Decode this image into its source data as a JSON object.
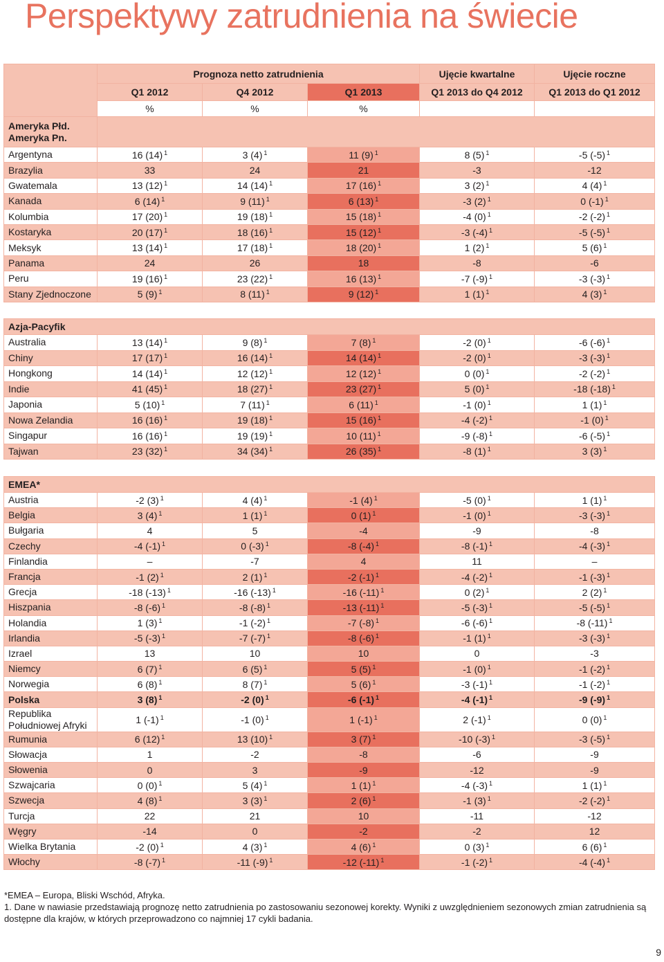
{
  "title": "Perspektywy zatrudnienia na świecie",
  "header": {
    "group_forecast": "Prognoza netto zatrudnienia",
    "group_quarterly": "Ujęcie kwartalne",
    "group_annual": "Ujęcie roczne",
    "columns": [
      "Q1 2012",
      "Q4 2012",
      "Q1 2013",
      "Q1 2013 do Q4 2012",
      "Q1 2013 do Q1 2012"
    ],
    "units": [
      "%",
      "%",
      "%"
    ]
  },
  "sections": [
    {
      "title": "Ameryka Płd.\nAmeryka Pn.",
      "rows": [
        {
          "label": "Argentyna",
          "values": [
            "16 (14)",
            "3 (4)",
            "11 (9)",
            "8 (5)",
            "-5 (-5)"
          ],
          "note": "1"
        },
        {
          "label": "Brazylia",
          "values": [
            "33",
            "24",
            "21",
            "-3",
            "-12"
          ]
        },
        {
          "label": "Gwatemala",
          "values": [
            "13 (12)",
            "14 (14)",
            "17 (16)",
            "3 (2)",
            "4 (4)"
          ],
          "note": "1"
        },
        {
          "label": "Kanada",
          "values": [
            "6 (14)",
            "9 (11)",
            "6 (13)",
            "-3 (2)",
            "0 (-1)"
          ],
          "note": "1"
        },
        {
          "label": "Kolumbia",
          "values": [
            "17 (20)",
            "19 (18)",
            "15 (18)",
            "-4 (0)",
            "-2 (-2)"
          ],
          "note": "1"
        },
        {
          "label": "Kostaryka",
          "values": [
            "20 (17)",
            "18 (16)",
            "15 (12)",
            "-3 (-4)",
            "-5 (-5)"
          ],
          "note": "1"
        },
        {
          "label": "Meksyk",
          "values": [
            "13 (14)",
            "17 (18)",
            "18 (20)",
            "1 (2)",
            "5 (6)"
          ],
          "note": "1"
        },
        {
          "label": "Panama",
          "values": [
            "24",
            "26",
            "18",
            "-8",
            "-6"
          ]
        },
        {
          "label": "Peru",
          "values": [
            "19 (16)",
            "23 (22)",
            "16 (13)",
            "-7 (-9)",
            "-3 (-3)"
          ],
          "note": "1"
        },
        {
          "label": "Stany Zjednoczone",
          "values": [
            "5 (9)",
            "8 (11)",
            "9 (12)",
            "1 (1)",
            "4 (3)"
          ],
          "note": "1"
        }
      ]
    },
    {
      "title": "Azja-Pacyfik",
      "rows": [
        {
          "label": "Australia",
          "values": [
            "13 (14)",
            "9 (8)",
            "7 (8)",
            "-2 (0)",
            "-6 (-6)"
          ],
          "note": "1"
        },
        {
          "label": "Chiny",
          "values": [
            "17 (17)",
            "16 (14)",
            "14 (14)",
            "-2 (0)",
            "-3 (-3)"
          ],
          "note": "1"
        },
        {
          "label": "Hongkong",
          "values": [
            "14 (14)",
            "12 (12)",
            "12 (12)",
            "0 (0)",
            "-2 (-2)"
          ],
          "note": "1"
        },
        {
          "label": "Indie",
          "values": [
            "41 (45)",
            "18 (27)",
            "23 (27)",
            "5 (0)",
            "-18 (-18)"
          ],
          "note": "1"
        },
        {
          "label": "Japonia",
          "values": [
            "5 (10)",
            "7 (11)",
            "6 (11)",
            "-1 (0)",
            "1 (1)"
          ],
          "note": "1"
        },
        {
          "label": "Nowa Zelandia",
          "values": [
            "16 (16)",
            "19 (18)",
            "15 (16)",
            "-4 (-2)",
            "-1 (0)"
          ],
          "note": "1"
        },
        {
          "label": "Singapur",
          "values": [
            "16 (16)",
            "19 (19)",
            "10 (11)",
            "-9 (-8)",
            "-6 (-5)"
          ],
          "note": "1"
        },
        {
          "label": "Tajwan",
          "values": [
            "23 (32)",
            "34 (34)",
            "26 (35)",
            "-8 (1)",
            "3 (3)"
          ],
          "note": "1"
        }
      ]
    },
    {
      "title": "EMEA*",
      "rows": [
        {
          "label": "Austria",
          "values": [
            "-2 (3)",
            "4 (4)",
            "-1 (4)",
            "-5 (0)",
            "1 (1)"
          ],
          "note": "1"
        },
        {
          "label": "Belgia",
          "values": [
            "3 (4)",
            "1 (1)",
            "0 (1)",
            "-1 (0)",
            "-3 (-3)"
          ],
          "note": "1"
        },
        {
          "label": "Bułgaria",
          "values": [
            "4",
            "5",
            "-4",
            "-9",
            "-8"
          ]
        },
        {
          "label": "Czechy",
          "values": [
            "-4 (-1)",
            "0 (-3)",
            "-8 (-4)",
            "-8 (-1)",
            "-4 (-3)"
          ],
          "note": "1"
        },
        {
          "label": "Finlandia",
          "values": [
            "–",
            "-7",
            "4",
            "11",
            "–"
          ]
        },
        {
          "label": "Francja",
          "values": [
            "-1 (2)",
            "2 (1)",
            "-2 (-1)",
            "-4 (-2)",
            "-1 (-3)"
          ],
          "note": "1"
        },
        {
          "label": "Grecja",
          "values": [
            "-18 (-13)",
            "-16 (-13)",
            "-16 (-11)",
            "0 (2)",
            "2 (2)"
          ],
          "note": "1"
        },
        {
          "label": "Hiszpania",
          "values": [
            "-8 (-6)",
            "-8 (-8)",
            "-13 (-11)",
            "-5 (-3)",
            "-5 (-5)"
          ],
          "note": "1"
        },
        {
          "label": "Holandia",
          "values": [
            "1 (3)",
            "-1 (-2)",
            "-7 (-8)",
            "-6 (-6)",
            "-8 (-11)"
          ],
          "note": "1"
        },
        {
          "label": "Irlandia",
          "values": [
            "-5 (-3)",
            "-7 (-7)",
            "-8 (-6)",
            "-1 (1)",
            "-3 (-3)"
          ],
          "note": "1"
        },
        {
          "label": "Izrael",
          "values": [
            "13",
            "10",
            "10",
            "0",
            "-3"
          ]
        },
        {
          "label": "Niemcy",
          "values": [
            "6 (7)",
            "6 (5)",
            "5 (5)",
            "-1 (0)",
            "-1 (-2)"
          ],
          "note": "1"
        },
        {
          "label": "Norwegia",
          "values": [
            "6 (8)",
            "8 (7)",
            "5 (6)",
            "-3 (-1)",
            "-1 (-2)"
          ],
          "note": "1"
        },
        {
          "label": "Polska",
          "values": [
            "3 (8)",
            "-2 (0)",
            "-6 (-1)",
            "-4 (-1)",
            "-9 (-9)"
          ],
          "note": "1",
          "bold": true
        },
        {
          "label": "Republika\nPołudniowej Afryki",
          "values": [
            "1 (-1)",
            "-1 (0)",
            "1 (-1)",
            "2 (-1)",
            "0 (0)"
          ],
          "note": "1"
        },
        {
          "label": "Rumunia",
          "values": [
            "6 (12)",
            "13 (10)",
            "3 (7)",
            "-10 (-3)",
            "-3 (-5)"
          ],
          "note": "1"
        },
        {
          "label": "Słowacja",
          "values": [
            "1",
            "-2",
            "-8",
            "-6",
            "-9"
          ]
        },
        {
          "label": "Słowenia",
          "values": [
            "0",
            "3",
            "-9",
            "-12",
            "-9"
          ]
        },
        {
          "label": "Szwajcaria",
          "values": [
            "0 (0)",
            "5 (4)",
            "1 (1)",
            "-4 (-3)",
            "1 (1)"
          ],
          "note": "1"
        },
        {
          "label": "Szwecja",
          "values": [
            "4 (8)",
            "3 (3)",
            "2 (6)",
            "-1 (3)",
            "-2 (-2)"
          ],
          "note": "1"
        },
        {
          "label": "Turcja",
          "values": [
            "22",
            "21",
            "10",
            "-11",
            "-12"
          ]
        },
        {
          "label": "Węgry",
          "values": [
            "-14",
            "0",
            "-2",
            "-2",
            "12"
          ]
        },
        {
          "label": "Wielka Brytania",
          "values": [
            "-2 (0)",
            "4 (3)",
            "4 (6)",
            "0 (3)",
            "6 (6)"
          ],
          "note": "1"
        },
        {
          "label": "Włochy",
          "values": [
            "-8 (-7)",
            "-11 (-9)",
            "-12 (-11)",
            "-1 (-2)",
            "-4 (-4)"
          ],
          "note": "1"
        }
      ]
    }
  ],
  "footnotes": [
    "*EMEA – Europa, Bliski Wschód, Afryka.",
    "1. Dane w nawiasie przedstawiają prognozę netto zatrudnienia po zastosowaniu sezonowej korekty. Wyniki z uwzględnieniem sezonowych zmian zatrudnienia są dostępne dla krajów, w których przeprowadzono co najmniej 17 cykli badania."
  ],
  "page_number": "9"
}
